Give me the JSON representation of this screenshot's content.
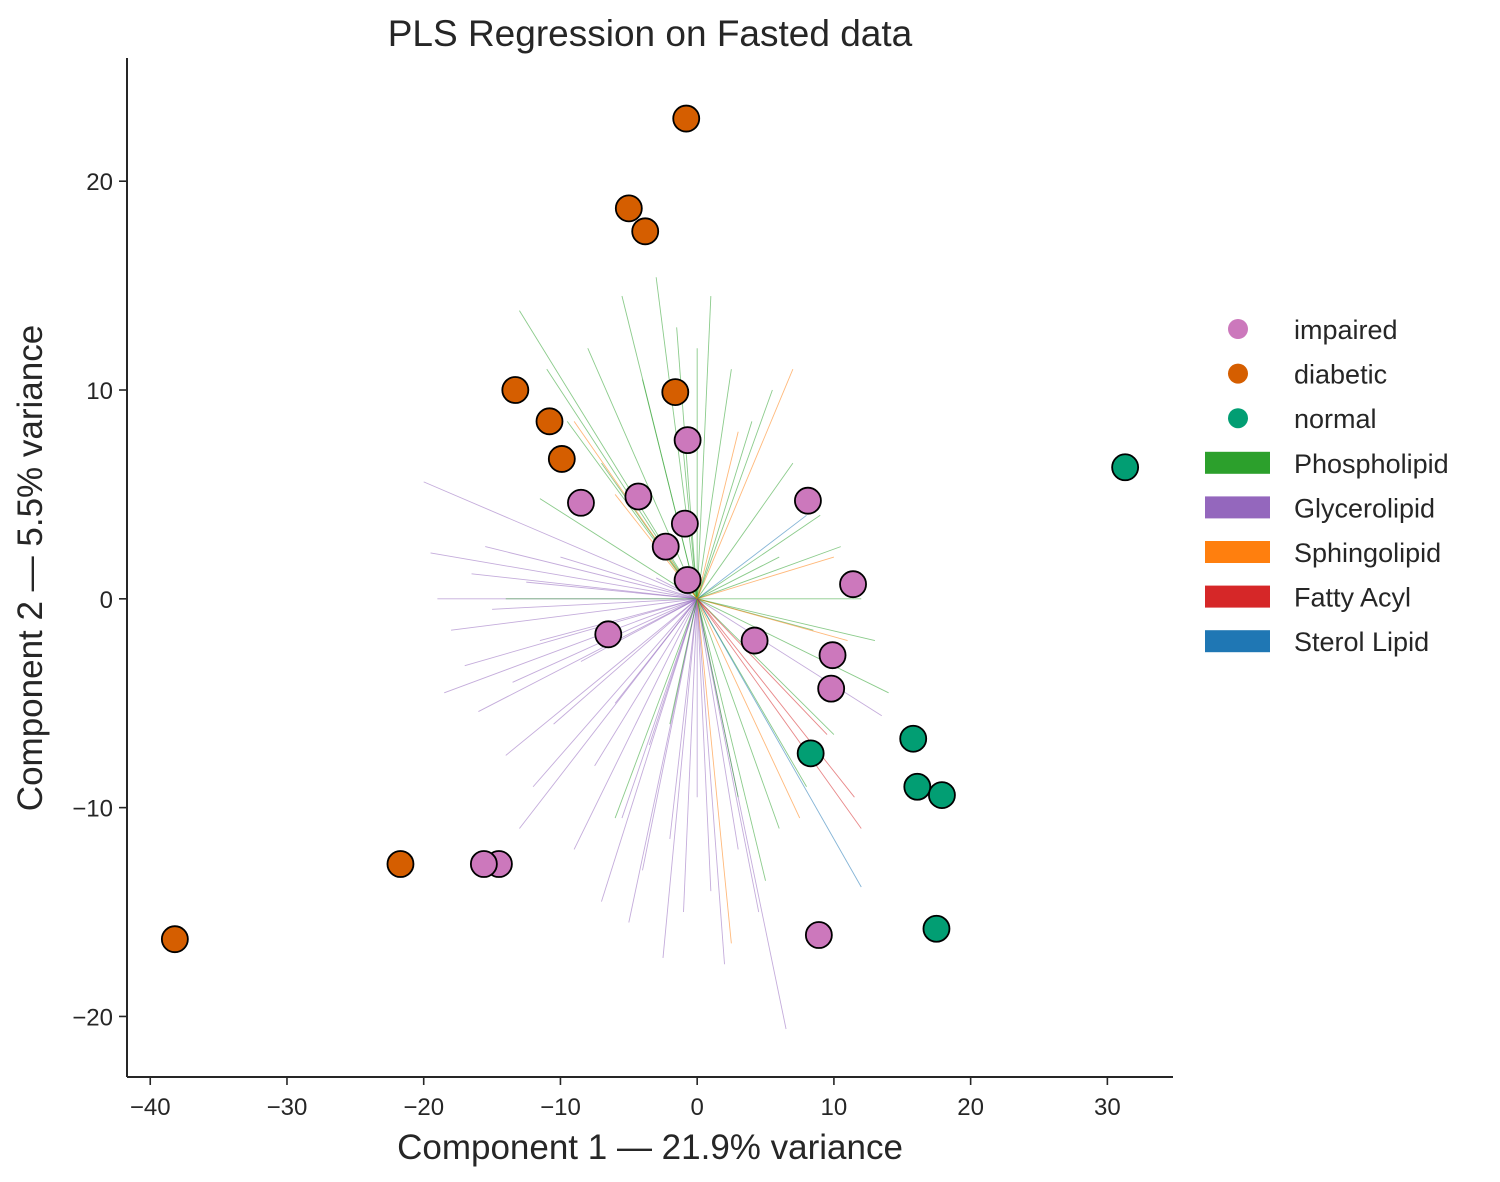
{
  "chart_data": {
    "type": "scatter",
    "title": "PLS Regression on Fasted data",
    "xlabel": "Component 1 — 21.9% variance",
    "ylabel": "Component 2 — 5.5% variance",
    "xlim": [
      -41.7,
      34.8
    ],
    "ylim": [
      -22.9,
      25.9
    ],
    "xticks": [
      -40,
      -30,
      -20,
      -10,
      0,
      10,
      20,
      30
    ],
    "yticks": [
      -20,
      -10,
      0,
      10,
      20
    ],
    "grid": false,
    "legend_position": "outside-right",
    "series": [
      {
        "name": "impaired",
        "color": "#cc78bc",
        "points": [
          [
            -0.7,
            7.6
          ],
          [
            -8.5,
            4.6
          ],
          [
            -4.3,
            4.9
          ],
          [
            -0.9,
            3.6
          ],
          [
            -2.3,
            2.5
          ],
          [
            -0.7,
            0.9
          ],
          [
            -6.5,
            -1.7
          ],
          [
            8.1,
            4.7
          ],
          [
            11.4,
            0.7
          ],
          [
            4.2,
            -2.0
          ],
          [
            9.9,
            -2.7
          ],
          [
            9.8,
            -4.3
          ],
          [
            -14.5,
            -12.7
          ],
          [
            -15.6,
            -12.7
          ],
          [
            8.9,
            -16.1
          ]
        ]
      },
      {
        "name": "diabetic",
        "color": "#d55e00",
        "points": [
          [
            -0.8,
            23.0
          ],
          [
            -5.0,
            18.7
          ],
          [
            -3.8,
            17.6
          ],
          [
            -13.3,
            10.0
          ],
          [
            -1.6,
            9.9
          ],
          [
            -10.8,
            8.5
          ],
          [
            -9.9,
            6.7
          ],
          [
            -21.7,
            -12.7
          ],
          [
            -38.2,
            -16.3
          ]
        ]
      },
      {
        "name": "normal",
        "color": "#029e73",
        "points": [
          [
            31.3,
            6.3
          ],
          [
            15.8,
            -6.7
          ],
          [
            8.3,
            -7.4
          ],
          [
            16.1,
            -9.0
          ],
          [
            17.9,
            -9.4
          ],
          [
            17.5,
            -15.8
          ]
        ]
      }
    ],
    "loading_categories": [
      {
        "name": "Phospholipid",
        "color": "#2ca02c"
      },
      {
        "name": "Glycerolipid",
        "color": "#9467bd"
      },
      {
        "name": "Sphingolipid",
        "color": "#ff7f0e"
      },
      {
        "name": "Fatty Acyl",
        "color": "#d62728"
      },
      {
        "name": "Sterol Lipid",
        "color": "#1f77b4"
      }
    ],
    "loading_vectors": [
      {
        "category": "Glycerolipid",
        "x": -20.0,
        "y": 5.6
      },
      {
        "category": "Glycerolipid",
        "x": -19.5,
        "y": 2.2
      },
      {
        "category": "Glycerolipid",
        "x": -19.0,
        "y": 0.0
      },
      {
        "category": "Glycerolipid",
        "x": -18.0,
        "y": -1.5
      },
      {
        "category": "Glycerolipid",
        "x": -17.0,
        "y": -3.2
      },
      {
        "category": "Glycerolipid",
        "x": -16.0,
        "y": -5.4
      },
      {
        "category": "Glycerolipid",
        "x": -15.5,
        "y": 2.5
      },
      {
        "category": "Glycerolipid",
        "x": -15.0,
        "y": -0.5
      },
      {
        "category": "Glycerolipid",
        "x": -14.0,
        "y": -7.5
      },
      {
        "category": "Glycerolipid",
        "x": -13.5,
        "y": -4.0
      },
      {
        "category": "Glycerolipid",
        "x": -12.5,
        "y": 0.8
      },
      {
        "category": "Glycerolipid",
        "x": -12.0,
        "y": -9.0
      },
      {
        "category": "Glycerolipid",
        "x": -11.5,
        "y": -2.0
      },
      {
        "category": "Glycerolipid",
        "x": -10.5,
        "y": -6.0
      },
      {
        "category": "Glycerolipid",
        "x": -10.0,
        "y": 2.0
      },
      {
        "category": "Glycerolipid",
        "x": -9.0,
        "y": -12.0
      },
      {
        "category": "Glycerolipid",
        "x": -8.5,
        "y": -3.0
      },
      {
        "category": "Glycerolipid",
        "x": -7.5,
        "y": -8.0
      },
      {
        "category": "Glycerolipid",
        "x": -7.0,
        "y": -14.5
      },
      {
        "category": "Glycerolipid",
        "x": -6.0,
        "y": -5.0
      },
      {
        "category": "Glycerolipid",
        "x": -5.5,
        "y": -10.5
      },
      {
        "category": "Glycerolipid",
        "x": -5.0,
        "y": -15.5
      },
      {
        "category": "Glycerolipid",
        "x": -4.0,
        "y": -13.0
      },
      {
        "category": "Glycerolipid",
        "x": -3.5,
        "y": -7.0
      },
      {
        "category": "Glycerolipid",
        "x": -2.5,
        "y": -17.2
      },
      {
        "category": "Glycerolipid",
        "x": -2.0,
        "y": -11.5
      },
      {
        "category": "Glycerolipid",
        "x": -1.0,
        "y": -15.0
      },
      {
        "category": "Glycerolipid",
        "x": 0.0,
        "y": -9.5
      },
      {
        "category": "Glycerolipid",
        "x": 1.0,
        "y": -14.0
      },
      {
        "category": "Glycerolipid",
        "x": 2.0,
        "y": -17.5
      },
      {
        "category": "Glycerolipid",
        "x": 3.0,
        "y": -12.0
      },
      {
        "category": "Glycerolipid",
        "x": 4.5,
        "y": -15.0
      },
      {
        "category": "Glycerolipid",
        "x": 6.5,
        "y": -20.6
      },
      {
        "category": "Glycerolipid",
        "x": 13.5,
        "y": -5.6
      },
      {
        "category": "Glycerolipid",
        "x": -18.5,
        "y": -4.5
      },
      {
        "category": "Glycerolipid",
        "x": -13.0,
        "y": -11.0
      },
      {
        "category": "Glycerolipid",
        "x": -3.0,
        "y": 1.0
      },
      {
        "category": "Glycerolipid",
        "x": -16.5,
        "y": 1.2
      },
      {
        "category": "Phospholipid",
        "x": -13.0,
        "y": 13.8
      },
      {
        "category": "Phospholipid",
        "x": -11.0,
        "y": 11.0
      },
      {
        "category": "Phospholipid",
        "x": -9.5,
        "y": 8.5
      },
      {
        "category": "Phospholipid",
        "x": -8.0,
        "y": 12.0
      },
      {
        "category": "Phospholipid",
        "x": -5.5,
        "y": 14.5
      },
      {
        "category": "Phospholipid",
        "x": -4.0,
        "y": 10.5
      },
      {
        "category": "Phospholipid",
        "x": -3.0,
        "y": 15.4
      },
      {
        "category": "Phospholipid",
        "x": -1.5,
        "y": 13.0
      },
      {
        "category": "Phospholipid",
        "x": 0.0,
        "y": 12.0
      },
      {
        "category": "Phospholipid",
        "x": 1.0,
        "y": 14.5
      },
      {
        "category": "Phospholipid",
        "x": 2.5,
        "y": 11.0
      },
      {
        "category": "Phospholipid",
        "x": 4.0,
        "y": 8.5
      },
      {
        "category": "Phospholipid",
        "x": 5.5,
        "y": 10.0
      },
      {
        "category": "Phospholipid",
        "x": 7.0,
        "y": 6.5
      },
      {
        "category": "Phospholipid",
        "x": 9.0,
        "y": 4.0
      },
      {
        "category": "Phospholipid",
        "x": 10.5,
        "y": 2.5
      },
      {
        "category": "Phospholipid",
        "x": 12.0,
        "y": 0.0
      },
      {
        "category": "Phospholipid",
        "x": 13.0,
        "y": -2.0
      },
      {
        "category": "Phospholipid",
        "x": 14.0,
        "y": -4.5
      },
      {
        "category": "Phospholipid",
        "x": 10.0,
        "y": -6.5
      },
      {
        "category": "Phospholipid",
        "x": 8.0,
        "y": -9.0
      },
      {
        "category": "Phospholipid",
        "x": 6.0,
        "y": -11.0
      },
      {
        "category": "Phospholipid",
        "x": 5.0,
        "y": -13.5
      },
      {
        "category": "Phospholipid",
        "x": 3.0,
        "y": -9.5
      },
      {
        "category": "Phospholipid",
        "x": -2.0,
        "y": -6.0
      },
      {
        "category": "Phospholipid",
        "x": -6.0,
        "y": -10.5
      },
      {
        "category": "Phospholipid",
        "x": -11.5,
        "y": 4.8
      },
      {
        "category": "Phospholipid",
        "x": -7.0,
        "y": 6.5
      },
      {
        "category": "Phospholipid",
        "x": 6.0,
        "y": 2.0
      },
      {
        "category": "Phospholipid",
        "x": 8.5,
        "y": -1.5
      },
      {
        "category": "Phospholipid",
        "x": -14.0,
        "y": 0.0
      },
      {
        "category": "Phospholipid",
        "x": -1.0,
        "y": 7.0
      },
      {
        "category": "Sphingolipid",
        "x": 7.0,
        "y": 11.0
      },
      {
        "category": "Sphingolipid",
        "x": 3.0,
        "y": 8.0
      },
      {
        "category": "Sphingolipid",
        "x": 10.0,
        "y": 2.0
      },
      {
        "category": "Sphingolipid",
        "x": -6.0,
        "y": 5.0
      },
      {
        "category": "Sphingolipid",
        "x": 2.5,
        "y": -16.5
      },
      {
        "category": "Sphingolipid",
        "x": 7.5,
        "y": -10.5
      },
      {
        "category": "Sphingolipid",
        "x": -9.0,
        "y": 8.5
      },
      {
        "category": "Sphingolipid",
        "x": 11.0,
        "y": -2.0
      },
      {
        "category": "Fatty Acyl",
        "x": 11.5,
        "y": -9.5
      },
      {
        "category": "Fatty Acyl",
        "x": 12.0,
        "y": -11.0
      },
      {
        "category": "Fatty Acyl",
        "x": 9.5,
        "y": -6.5
      },
      {
        "category": "Sterol Lipid",
        "x": 12.0,
        "y": -13.8
      },
      {
        "category": "Sterol Lipid",
        "x": 8.0,
        "y": 4.0
      }
    ]
  }
}
